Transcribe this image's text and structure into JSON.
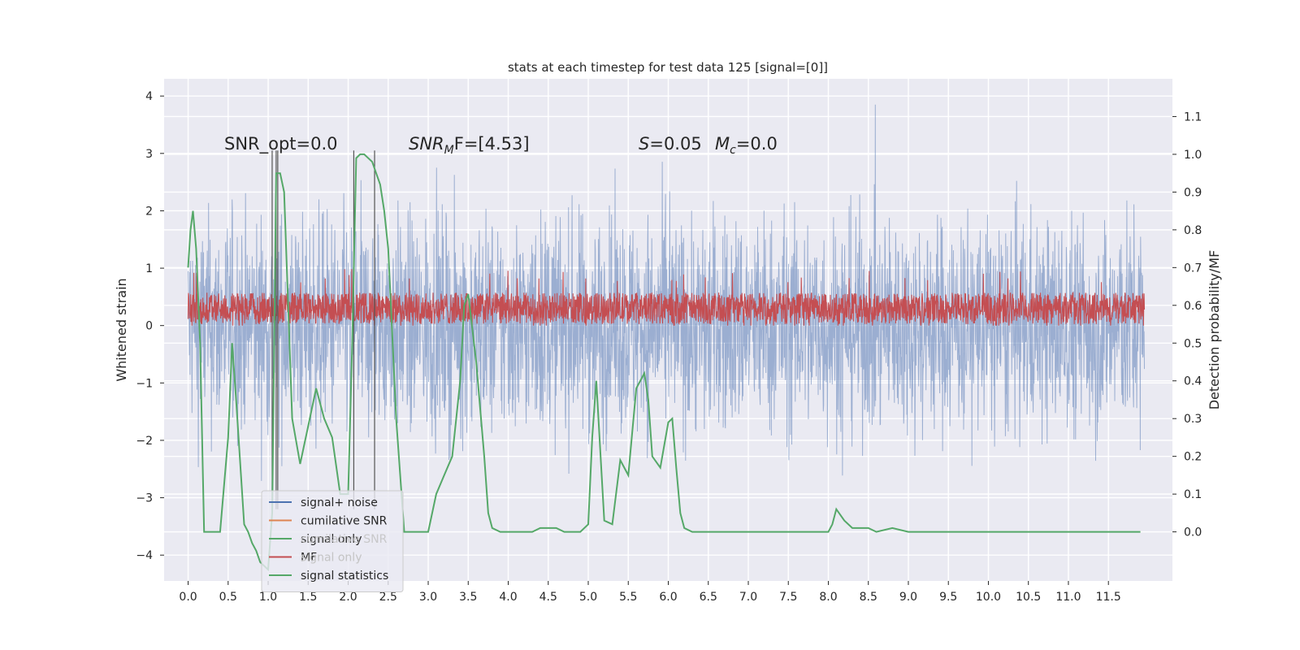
{
  "chart_data": {
    "type": "line",
    "title": "stats at each timestep for test data 125 [signal=[0]]",
    "ylabel_left": "Whitened strain",
    "ylabel_right": "Detection probability/MF",
    "x_ticks": [
      "0.0",
      "0.5",
      "1.0",
      "1.5",
      "2.0",
      "2.5",
      "3.0",
      "3.5",
      "4.0",
      "4.5",
      "5.0",
      "5.5",
      "6.0",
      "6.5",
      "7.0",
      "7.5",
      "8.0",
      "8.5",
      "9.0",
      "9.5",
      "10.0",
      "10.5",
      "11.0",
      "11.5"
    ],
    "y_ticks_left": [
      "4",
      "3",
      "2",
      "1",
      "0",
      "−1",
      "−2",
      "−3",
      "−4"
    ],
    "y_ticks_right": [
      "1.1",
      "1.0",
      "0.9",
      "0.8",
      "0.7",
      "0.6",
      "0.5",
      "0.4",
      "0.3",
      "0.2",
      "0.1",
      "0.0"
    ],
    "xlim": [
      -0.3,
      12.3
    ],
    "ylim_left": [
      -4.45,
      4.3
    ],
    "ylim_right": [
      -0.13,
      1.2
    ],
    "grid": true,
    "legend_position": "lower-left",
    "annotations": {
      "snr_opt": "SNR_opt=0.0",
      "snr_mf": "SNR",
      "snr_mf_sub": "M",
      "snr_mf_tail": "F=[4.53]",
      "s_label": "S",
      "s_value": "=0.05",
      "mc_label": "M",
      "mc_sub": "c",
      "mc_value": "=0.0"
    },
    "legend": [
      {
        "label": "signal+ noise",
        "color": "#4c72b0"
      },
      {
        "label": "cumilative SNR",
        "color": "#dd8452"
      },
      {
        "label": "signal only",
        "color": "#55a868"
      },
      {
        "label": "MF",
        "color": "#c44e52"
      },
      {
        "label": "signal statistics",
        "color": "#55a868"
      }
    ],
    "legend_hidden_behind": [
      "cumilative SNR",
      "signal only"
    ],
    "series": [
      {
        "name": "signal statistics",
        "axis": "right",
        "color": "#55a868",
        "x": [
          0.0,
          0.03,
          0.06,
          0.1,
          0.15,
          0.2,
          0.25,
          0.3,
          0.35,
          0.4,
          0.5,
          0.55,
          0.6,
          0.7,
          0.75,
          0.8,
          0.85,
          0.9,
          1.0,
          1.05,
          1.1,
          1.15,
          1.2,
          1.3,
          1.4,
          1.5,
          1.6,
          1.7,
          1.8,
          1.9,
          2.0,
          2.05,
          2.1,
          2.15,
          2.2,
          2.3,
          2.35,
          2.4,
          2.45,
          2.5,
          2.6,
          2.7,
          2.8,
          2.9,
          3.0,
          3.1,
          3.2,
          3.3,
          3.4,
          3.45,
          3.5,
          3.6,
          3.7,
          3.75,
          3.8,
          3.9,
          4.0,
          4.2,
          4.3,
          4.4,
          4.5,
          4.6,
          4.7,
          4.8,
          4.9,
          5.0,
          5.05,
          5.1,
          5.2,
          5.3,
          5.4,
          5.5,
          5.6,
          5.7,
          5.75,
          5.8,
          5.9,
          6.0,
          6.05,
          6.1,
          6.15,
          6.2,
          6.3,
          6.5,
          7.0,
          7.5,
          8.0,
          8.05,
          8.1,
          8.2,
          8.3,
          8.5,
          8.6,
          8.8,
          9.0,
          9.5,
          10.0,
          10.5,
          11.0,
          11.5,
          11.9
        ],
        "y": [
          0.7,
          0.8,
          0.85,
          0.75,
          0.5,
          0.0,
          0.0,
          0.0,
          0.0,
          0.0,
          0.25,
          0.5,
          0.35,
          0.02,
          0.0,
          -0.03,
          -0.05,
          -0.08,
          -0.1,
          0.05,
          0.95,
          0.95,
          0.9,
          0.3,
          0.18,
          0.28,
          0.38,
          0.3,
          0.25,
          0.1,
          0.1,
          0.5,
          0.99,
          1.0,
          1.0,
          0.98,
          0.95,
          0.92,
          0.85,
          0.75,
          0.3,
          0.0,
          0.0,
          0.0,
          0.0,
          0.1,
          0.15,
          0.2,
          0.4,
          0.6,
          0.63,
          0.45,
          0.2,
          0.05,
          0.01,
          0.0,
          0.0,
          0.0,
          0.0,
          0.01,
          0.01,
          0.01,
          0.0,
          0.0,
          0.0,
          0.02,
          0.25,
          0.4,
          0.03,
          0.02,
          0.19,
          0.15,
          0.38,
          0.42,
          0.35,
          0.2,
          0.17,
          0.29,
          0.3,
          0.17,
          0.05,
          0.01,
          0.0,
          0.0,
          0.0,
          0.0,
          0.0,
          0.02,
          0.06,
          0.03,
          0.01,
          0.01,
          0.0,
          0.01,
          0.0,
          0.0,
          0.0,
          0.0,
          0.0,
          0.0,
          0.0
        ]
      }
    ],
    "vertical_markers_x": [
      1.05,
      1.1,
      1.12,
      2.07,
      2.33
    ]
  }
}
